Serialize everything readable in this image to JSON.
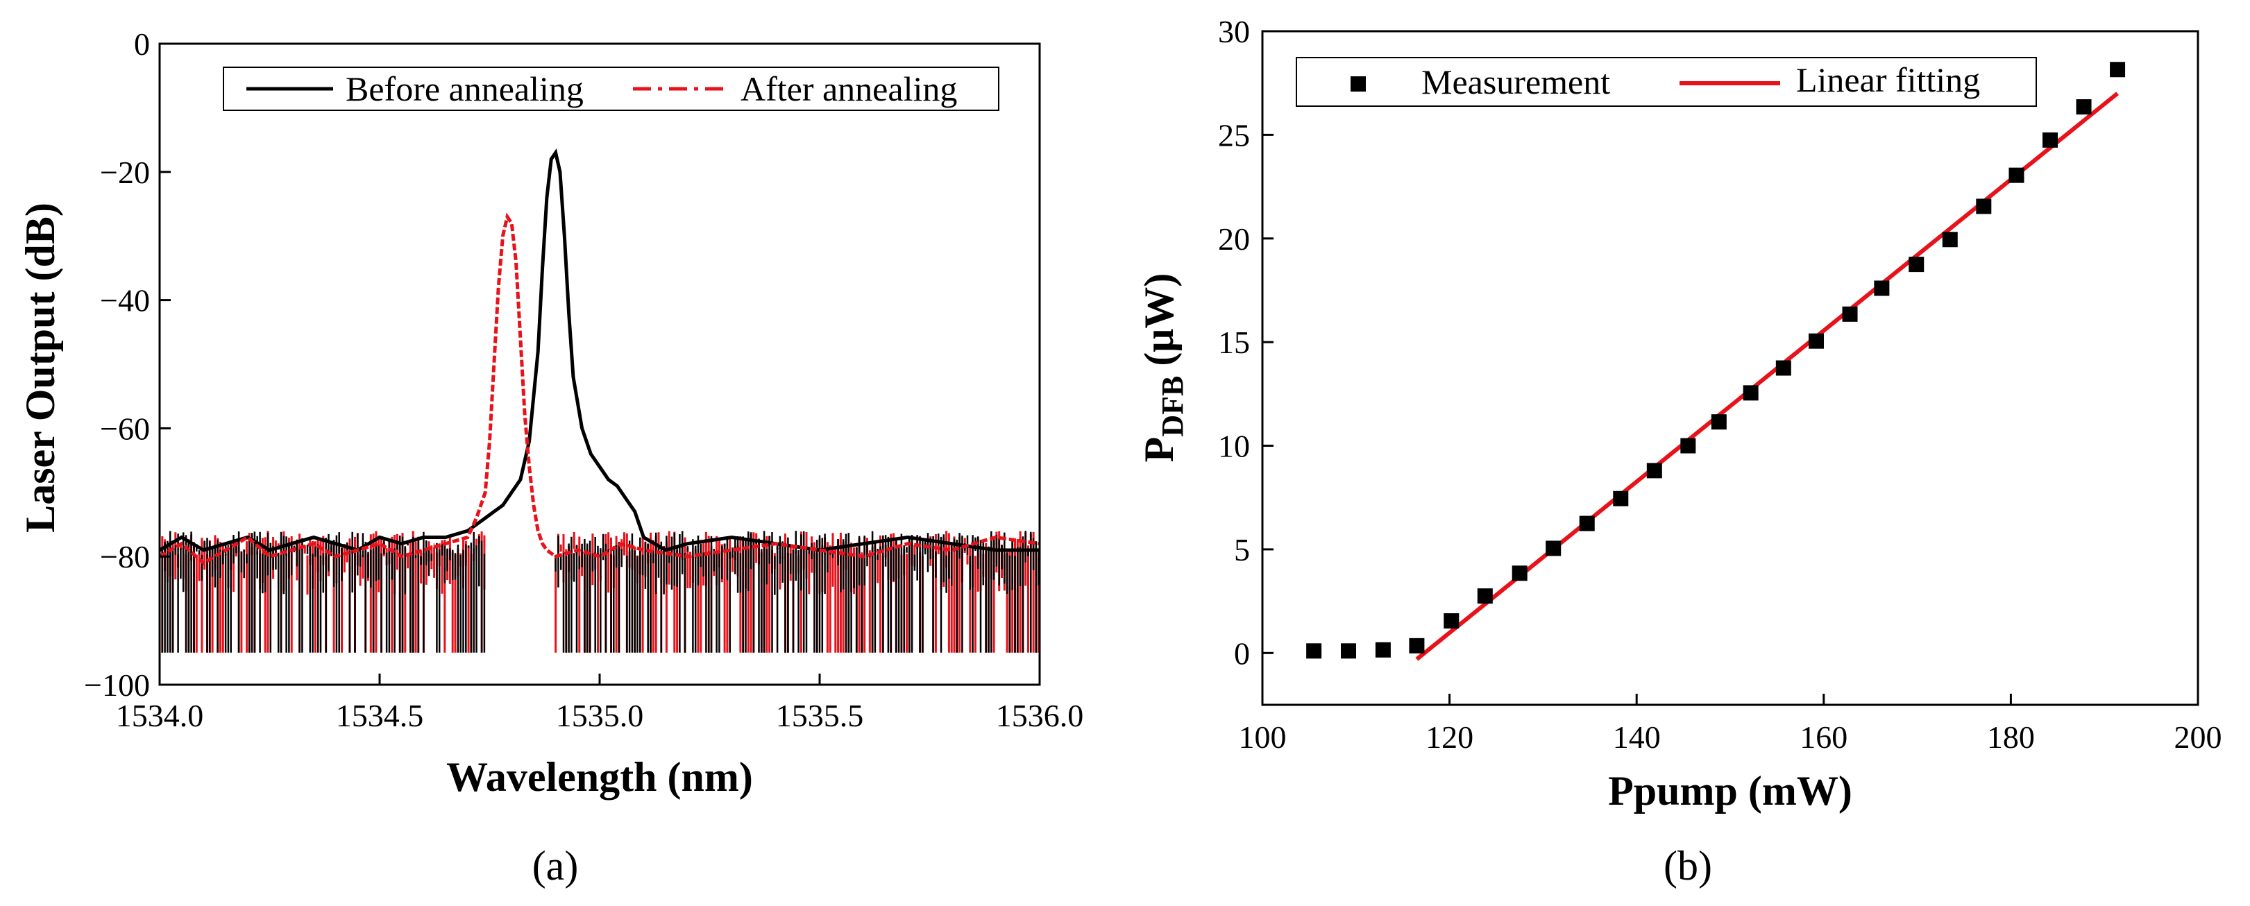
{
  "chart_data": [
    {
      "id": "a",
      "type": "line",
      "caption": "(a)",
      "xlabel": "Wavelength (nm)",
      "ylabel": "Laser Output (dB)",
      "xlim": [
        1534.0,
        1536.0
      ],
      "ylim": [
        -100,
        0
      ],
      "xticks": [
        "1534.0",
        "1534.5",
        "1535.0",
        "1535.5",
        "1536.0"
      ],
      "xtick_values": [
        1534.0,
        1534.5,
        1535.0,
        1535.5,
        1536.0
      ],
      "yticks": [
        "0",
        "−20",
        "−40",
        "−60",
        "−80",
        "−100"
      ],
      "ytick_values": [
        0,
        -20,
        -40,
        -60,
        -80,
        -100
      ],
      "legend_position": "top-right",
      "series": [
        {
          "name": "Before annealing",
          "color": "#000000",
          "style": "solid",
          "x": [
            1534.0,
            1534.05,
            1534.1,
            1534.15,
            1534.2,
            1534.25,
            1534.3,
            1534.35,
            1534.4,
            1534.45,
            1534.5,
            1534.55,
            1534.6,
            1534.65,
            1534.7,
            1534.72,
            1534.74,
            1534.76,
            1534.78,
            1534.8,
            1534.82,
            1534.84,
            1534.86,
            1534.87,
            1534.88,
            1534.89,
            1534.9,
            1534.91,
            1534.92,
            1534.93,
            1534.94,
            1534.96,
            1534.98,
            1535.0,
            1535.02,
            1535.04,
            1535.06,
            1535.08,
            1535.1,
            1535.15,
            1535.2,
            1535.3,
            1535.4,
            1535.5,
            1535.6,
            1535.7,
            1535.8,
            1535.9,
            1536.0
          ],
          "y": [
            -79,
            -77,
            -79,
            -78,
            -77,
            -79,
            -78,
            -77,
            -78,
            -79,
            -77,
            -78,
            -77,
            -77,
            -76,
            -75,
            -74,
            -73,
            -72,
            -70,
            -68,
            -62,
            -48,
            -35,
            -24,
            -18,
            -17,
            -20,
            -30,
            -42,
            -52,
            -60,
            -64,
            -66,
            -68,
            -69,
            -71,
            -73,
            -77,
            -79,
            -78,
            -77,
            -78,
            -79,
            -78,
            -77,
            -78,
            -79,
            -79
          ]
        },
        {
          "name": "After annealing",
          "color": "#e8121b",
          "style": "dash-dot",
          "x": [
            1534.0,
            1534.05,
            1534.1,
            1534.15,
            1534.2,
            1534.25,
            1534.3,
            1534.35,
            1534.4,
            1534.45,
            1534.5,
            1534.55,
            1534.6,
            1534.65,
            1534.7,
            1534.72,
            1534.74,
            1534.75,
            1534.76,
            1534.77,
            1534.78,
            1534.79,
            1534.8,
            1534.81,
            1534.82,
            1534.83,
            1534.84,
            1534.85,
            1534.86,
            1534.87,
            1534.88,
            1534.9,
            1534.95,
            1535.0,
            1535.05,
            1535.1,
            1535.2,
            1535.3,
            1535.4,
            1535.5,
            1535.6,
            1535.7,
            1535.8,
            1535.9,
            1536.0
          ],
          "y": [
            -80,
            -78,
            -81,
            -79,
            -77,
            -80,
            -79,
            -78,
            -80,
            -79,
            -78,
            -80,
            -79,
            -78,
            -77,
            -74,
            -70,
            -62,
            -50,
            -38,
            -30,
            -27,
            -28,
            -34,
            -46,
            -58,
            -66,
            -72,
            -76,
            -78,
            -79,
            -80,
            -79,
            -80,
            -78,
            -79,
            -80,
            -79,
            -78,
            -79,
            -80,
            -78,
            -79,
            -77,
            -78
          ]
        }
      ],
      "noise": {
        "x_range": [
          1534.0,
          1536.0
        ],
        "excluded_x": [
          1534.74,
          1534.9
        ],
        "floor": -95,
        "note": "Dense instrument noise spikes between the baseline (~-78 dB) and the -95 dB floor, both series"
      }
    },
    {
      "id": "b",
      "type": "scatter",
      "caption": "(b)",
      "xlabel": "Ppump (mW)",
      "ylabel_main": "P",
      "ylabel_sub": "DFB",
      "ylabel_unit": "(μW)",
      "xlim": [
        100,
        200
      ],
      "ylim": [
        -2.5,
        30
      ],
      "xticks": [
        "100",
        "120",
        "140",
        "160",
        "180",
        "200"
      ],
      "xtick_values": [
        100,
        120,
        140,
        160,
        180,
        200
      ],
      "yticks": [
        "0",
        "5",
        "10",
        "15",
        "20",
        "25",
        "30"
      ],
      "ytick_values": [
        0,
        5,
        10,
        15,
        20,
        25,
        30
      ],
      "legend_position": "top",
      "series": [
        {
          "name": "Measurement",
          "color": "#000000",
          "marker": "square",
          "x": [
            105.5,
            109.2,
            112.9,
            116.5,
            120.2,
            123.8,
            127.5,
            131.1,
            134.7,
            138.3,
            141.9,
            145.5,
            148.8,
            152.2,
            155.7,
            159.2,
            162.8,
            166.2,
            169.9,
            173.5,
            177.1,
            180.6,
            184.2,
            187.8,
            191.4
          ],
          "y": [
            0.1,
            0.1,
            0.15,
            0.35,
            1.55,
            2.75,
            3.85,
            5.05,
            6.25,
            7.45,
            8.8,
            10.0,
            11.15,
            12.55,
            13.75,
            15.05,
            16.35,
            17.6,
            18.75,
            19.95,
            21.55,
            23.05,
            24.75,
            26.35,
            28.15
          ]
        },
        {
          "name": "Linear fitting",
          "color": "#e8121b",
          "type": "line",
          "x": [
            116.5,
            191.4
          ],
          "y": [
            -0.3,
            27.0
          ]
        }
      ]
    }
  ]
}
